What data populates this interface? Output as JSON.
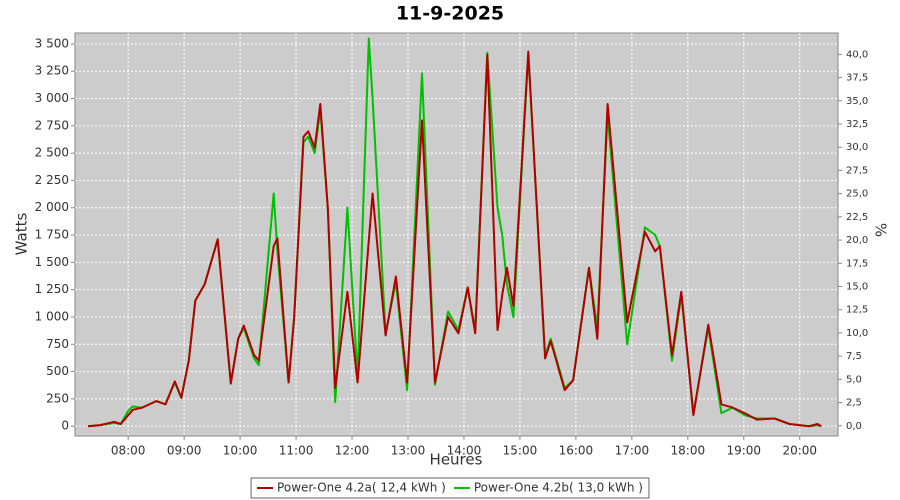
{
  "chart_data": {
    "type": "line",
    "title": "11-9-2025",
    "x_label": "Heures",
    "y_label": "Watts",
    "y2_label": "%",
    "x": [
      "07:17",
      "07:30",
      "07:45",
      "07:52",
      "08:00",
      "08:05",
      "08:15",
      "08:30",
      "08:40",
      "08:50",
      "08:57",
      "09:05",
      "09:12",
      "09:22",
      "09:36",
      "09:50",
      "09:58",
      "10:04",
      "10:15",
      "10:20",
      "10:36",
      "10:40",
      "10:52",
      "10:58",
      "11:08",
      "11:13",
      "11:20",
      "11:26",
      "11:34",
      "11:42",
      "11:55",
      "12:06",
      "12:18",
      "12:22",
      "12:36",
      "12:47",
      "12:59",
      "13:15",
      "13:29",
      "13:43",
      "13:54",
      "14:04",
      "14:12",
      "14:25",
      "14:36",
      "14:41",
      "14:46",
      "14:53",
      "15:09",
      "15:27",
      "15:33",
      "15:48",
      "15:57",
      "16:14",
      "16:23",
      "16:34",
      "16:55",
      "17:14",
      "17:25",
      "17:30",
      "17:43",
      "17:53",
      "18:06",
      "18:22",
      "18:36",
      "18:48",
      "19:01",
      "19:14",
      "19:33",
      "19:49",
      "20:10",
      "20:19",
      "20:23"
    ],
    "series": [
      {
        "name": "Power-One 4.2a( 12,4 kWh )",
        "color": "#b00000",
        "values": [
          0,
          10,
          40,
          20,
          100,
          150,
          170,
          230,
          200,
          410,
          260,
          600,
          1150,
          1300,
          1710,
          390,
          800,
          920,
          650,
          600,
          1650,
          1720,
          400,
          1000,
          2650,
          2700,
          2550,
          2950,
          2000,
          350,
          1230,
          400,
          1700,
          2130,
          830,
          1370,
          400,
          2800,
          400,
          1000,
          850,
          1270,
          850,
          3400,
          880,
          1200,
          1450,
          1100,
          3430,
          620,
          780,
          330,
          420,
          1450,
          800,
          2950,
          950,
          1780,
          1600,
          1650,
          650,
          1230,
          100,
          930,
          200,
          170,
          120,
          60,
          70,
          20,
          0,
          20,
          0
        ]
      },
      {
        "name": "Power-One 4.2b( 13,0 kWh )",
        "color": "#00c000",
        "values": [
          0,
          10,
          30,
          20,
          140,
          180,
          170,
          230,
          200,
          400,
          260,
          600,
          1150,
          1300,
          1710,
          400,
          800,
          900,
          620,
          560,
          2130,
          1600,
          400,
          1000,
          2600,
          2650,
          2500,
          2900,
          2000,
          220,
          2000,
          450,
          3550,
          3000,
          850,
          1320,
          330,
          3230,
          380,
          1050,
          880,
          1270,
          880,
          3420,
          2000,
          1750,
          1300,
          1000,
          3400,
          650,
          800,
          350,
          420,
          1450,
          900,
          2850,
          750,
          1820,
          1750,
          1650,
          600,
          1200,
          120,
          900,
          120,
          170,
          100,
          70,
          70,
          20,
          0,
          10,
          0
        ]
      }
    ],
    "xlim": [
      "07:03",
      "20:41"
    ],
    "xticks": [
      "08:00",
      "09:00",
      "10:00",
      "11:00",
      "12:00",
      "13:00",
      "14:00",
      "15:00",
      "16:00",
      "17:00",
      "18:00",
      "19:00",
      "20:00"
    ],
    "ylim": [
      -90,
      3600
    ],
    "yticks": [
      0,
      250,
      500,
      750,
      {
        "value": 1000,
        "label": "1 000"
      },
      {
        "value": 1250,
        "label": "1 250"
      },
      {
        "value": 1500,
        "label": "1 500"
      },
      {
        "value": 1750,
        "label": "1 750"
      },
      {
        "value": 2000,
        "label": "2 000"
      },
      {
        "value": 2250,
        "label": "2 250"
      },
      {
        "value": 2500,
        "label": "2 500"
      },
      {
        "value": 2750,
        "label": "2 750"
      },
      {
        "value": 3000,
        "label": "3 000"
      },
      {
        "value": 3250,
        "label": "3 250"
      },
      {
        "value": 3500,
        "label": "3 500"
      }
    ],
    "y2lim": [
      -1.1,
      42.3
    ],
    "y2ticks": [
      {
        "value": 0,
        "label": "0,0"
      },
      {
        "value": 2.5,
        "label": "2,5"
      },
      {
        "value": 5,
        "label": "5,0"
      },
      {
        "value": 7.5,
        "label": "7,5"
      },
      {
        "value": 10,
        "label": "10,0"
      },
      {
        "value": 12.5,
        "label": "12,5"
      },
      {
        "value": 15,
        "label": "15,0"
      },
      {
        "value": 17.5,
        "label": "17,5"
      },
      {
        "value": 20,
        "label": "20,0"
      },
      {
        "value": 22.5,
        "label": "22,5"
      },
      {
        "value": 25,
        "label": "25,0"
      },
      {
        "value": 27.5,
        "label": "27,5"
      },
      {
        "value": 30,
        "label": "30,0"
      },
      {
        "value": 32.5,
        "label": "32,5"
      },
      {
        "value": 35,
        "label": "35,0"
      },
      {
        "value": 37.5,
        "label": "37,5"
      },
      {
        "value": 40,
        "label": "40,0"
      }
    ],
    "grid": true,
    "background": "#cccccc",
    "legend": "bottom"
  }
}
